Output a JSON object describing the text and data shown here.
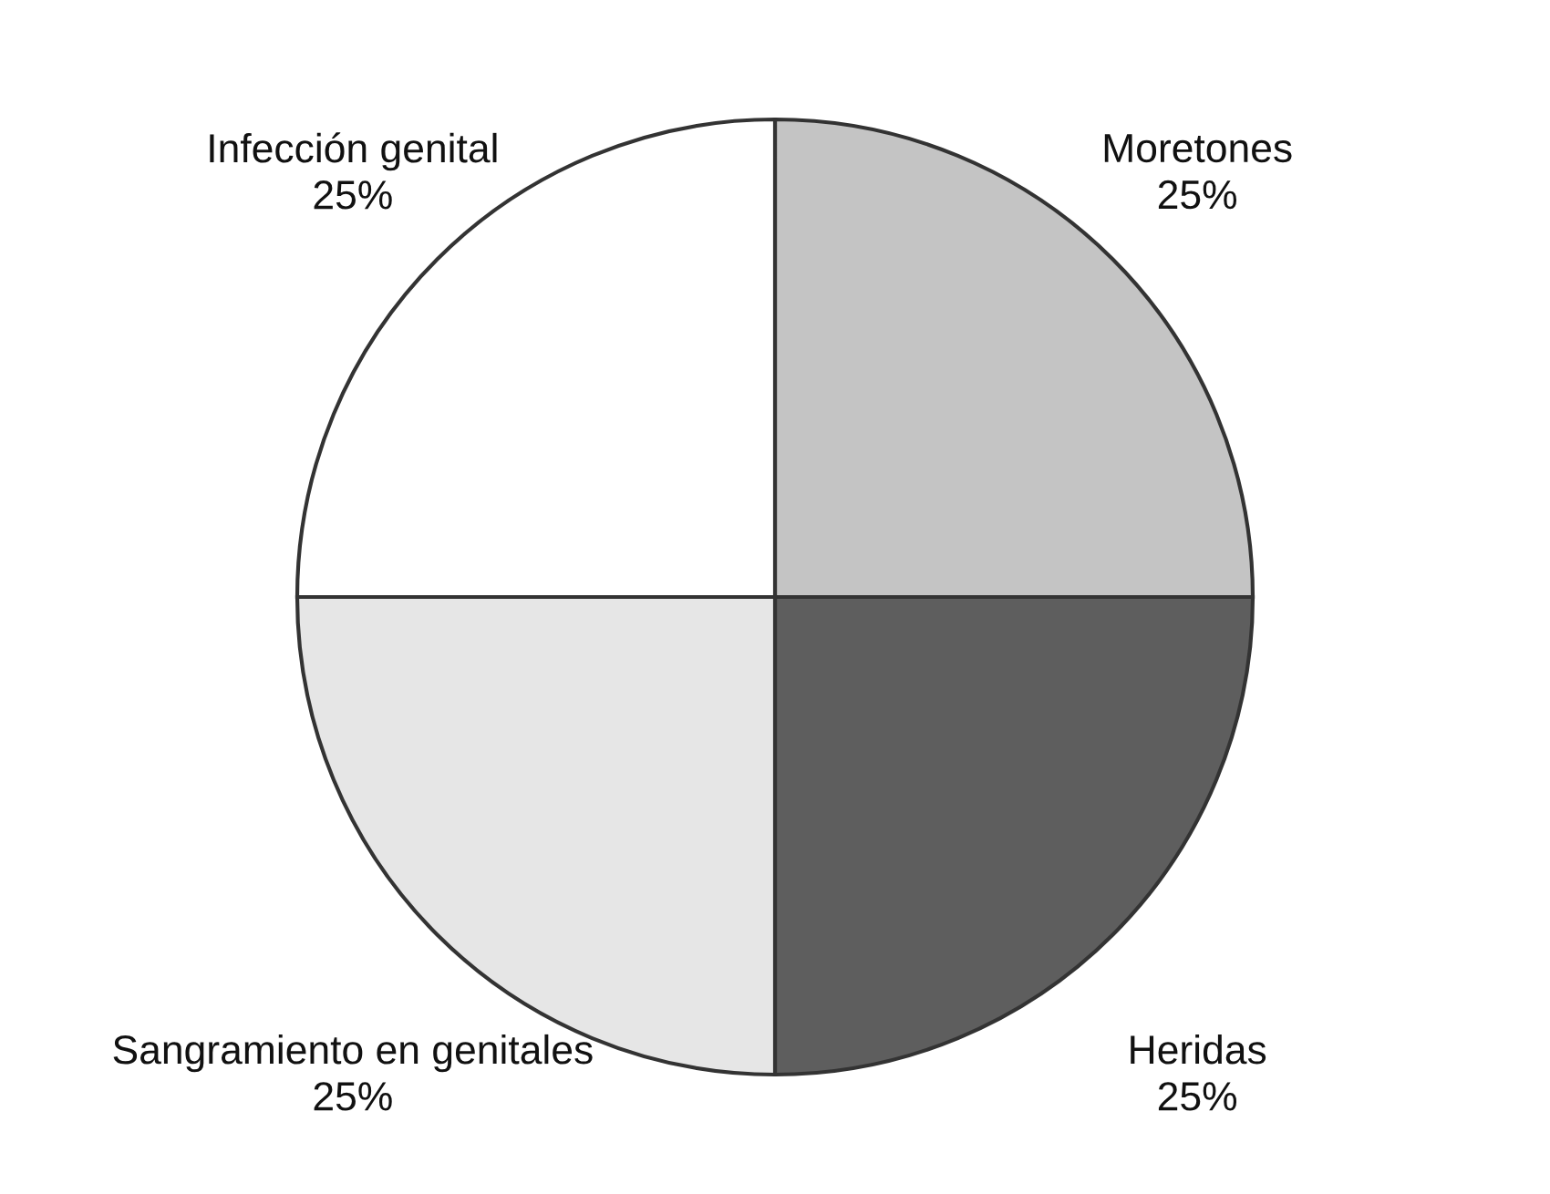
{
  "chart_data": {
    "type": "pie",
    "categories": [
      "Moretones",
      "Heridas",
      "Sangramiento en genitales",
      "Infección genital"
    ],
    "values": [
      25,
      25,
      25,
      25
    ],
    "value_labels": [
      "25%",
      "25%",
      "25%",
      "25%"
    ],
    "colors": [
      "#c4c4c4",
      "#5e5e5e",
      "#e6e6e6",
      "#ffffff"
    ],
    "legend": false
  }
}
